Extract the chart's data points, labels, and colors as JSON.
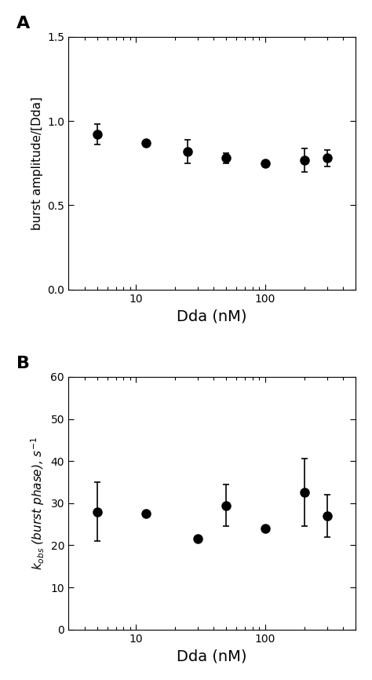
{
  "panel_A": {
    "x": [
      5,
      12,
      25,
      50,
      100,
      200,
      300
    ],
    "y": [
      0.92,
      0.87,
      0.82,
      0.78,
      0.75,
      0.77,
      0.78
    ],
    "yerr": [
      0.06,
      0,
      0.07,
      0.03,
      0,
      0.07,
      0.05
    ],
    "ylabel": "burst amplitude/[Dda]",
    "xlabel": "Dda (nM)",
    "ylim": [
      0,
      1.5
    ],
    "yticks": [
      0,
      0.5,
      1.0,
      1.5
    ],
    "label": "A"
  },
  "panel_B": {
    "x": [
      5,
      12,
      30,
      50,
      100,
      200,
      300
    ],
    "y": [
      28,
      27.5,
      21.5,
      29.5,
      24,
      32.5,
      27
    ],
    "yerr": [
      7,
      0,
      0,
      5,
      0,
      8,
      5
    ],
    "ylabel_regular": " (burst phase), s",
    "ylabel_italic": "k_obs",
    "xlabel": "Dda (nM)",
    "ylim": [
      0,
      60
    ],
    "yticks": [
      0,
      10,
      20,
      30,
      40,
      50,
      60
    ],
    "label": "B"
  },
  "xlim": [
    3,
    500
  ],
  "marker": "o",
  "markersize": 8,
  "color": "#000000",
  "capsize": 3,
  "elinewidth": 1.2
}
